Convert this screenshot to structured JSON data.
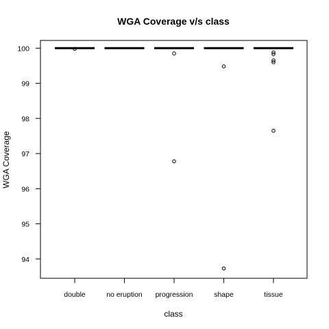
{
  "chart_data": {
    "type": "boxplot",
    "title": "WGA Coverage v/s class",
    "xlabel": "class",
    "ylabel": "WGA Coverage",
    "categories": [
      "double",
      "no eruption",
      "progression",
      "shape",
      "tissue"
    ],
    "medians": [
      100,
      100,
      100,
      100,
      100
    ],
    "outliers": [
      [
        99.98
      ],
      [],
      [
        99.85,
        96.78
      ],
      [
        99.48,
        93.73
      ],
      [
        99.88,
        99.83,
        99.65,
        99.6,
        97.65
      ]
    ],
    "ylim": [
      93.45,
      100.22
    ],
    "yticks": [
      "94",
      "95",
      "96",
      "97",
      "98",
      "99",
      "100"
    ],
    "ytick_values": [
      94,
      95,
      96,
      97,
      98,
      99,
      100
    ],
    "grid": false,
    "legend": "none"
  }
}
